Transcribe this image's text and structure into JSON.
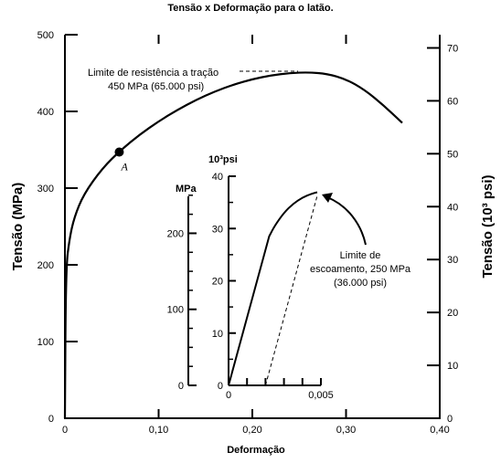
{
  "chart_data": {
    "type": "line",
    "title": "Tensão x Deformação para o latão.",
    "xlabel": "Deformação",
    "ylabel": "Tensão (MPa)",
    "ylabel_right": "Tensão (10³ psi)",
    "xlim": [
      0,
      0.4
    ],
    "ylim": [
      0,
      500
    ],
    "ylim_right": [
      0,
      72.5
    ],
    "x_ticks": [
      "0",
      "0,10",
      "0,20",
      "0,30",
      "0,40"
    ],
    "y_ticks": [
      "0",
      "100",
      "200",
      "300",
      "400",
      "500"
    ],
    "y_ticks_right": [
      "0",
      "10",
      "20",
      "30",
      "40",
      "50",
      "60",
      "70"
    ],
    "series": [
      {
        "x": [
          0,
          0.001,
          0.005,
          0.01,
          0.02,
          0.04,
          0.06,
          0.08,
          0.1,
          0.12,
          0.14,
          0.16,
          0.18,
          0.2,
          0.22,
          0.24,
          0.26,
          0.28,
          0.3,
          0.32,
          0.34,
          0.36
        ],
        "y": [
          0,
          195,
          235,
          262,
          292,
          326,
          350,
          370,
          387,
          402,
          415,
          426,
          435,
          442,
          447,
          450,
          451,
          449,
          442,
          428,
          408,
          385
        ]
      }
    ],
    "point_A": {
      "x": 0.058,
      "y": 347,
      "label": "A"
    },
    "annotations": {
      "tensile_strength": [
        "Limite de resistência a tração",
        "450 MPa (65.000 psi)"
      ],
      "yield_strength": [
        "Limite de",
        "escoamento, 250 MPa",
        "(36.000 psi)"
      ]
    },
    "inset": {
      "xlabel_ticks": [
        "0",
        "0,005"
      ],
      "xlim": [
        0,
        0.005
      ],
      "mpa_unit": "MPa",
      "mpa_ticks": [
        "0",
        "100",
        "200"
      ],
      "mpa_lim": [
        0,
        275
      ],
      "psi_unit": "10³psi",
      "psi_ticks": [
        "0",
        "10",
        "20",
        "30",
        "40"
      ],
      "psi_lim": [
        0,
        40
      ],
      "curve": {
        "x": [
          0,
          0.0022,
          0.0025,
          0.003,
          0.0035,
          0.004,
          0.0045,
          0.0048
        ],
        "y": [
          0,
          196,
          210,
          227,
          239,
          247,
          252,
          254
        ]
      },
      "offset_line": {
        "x": [
          0.002,
          0.0048
        ],
        "y": [
          0,
          254
        ]
      }
    }
  }
}
